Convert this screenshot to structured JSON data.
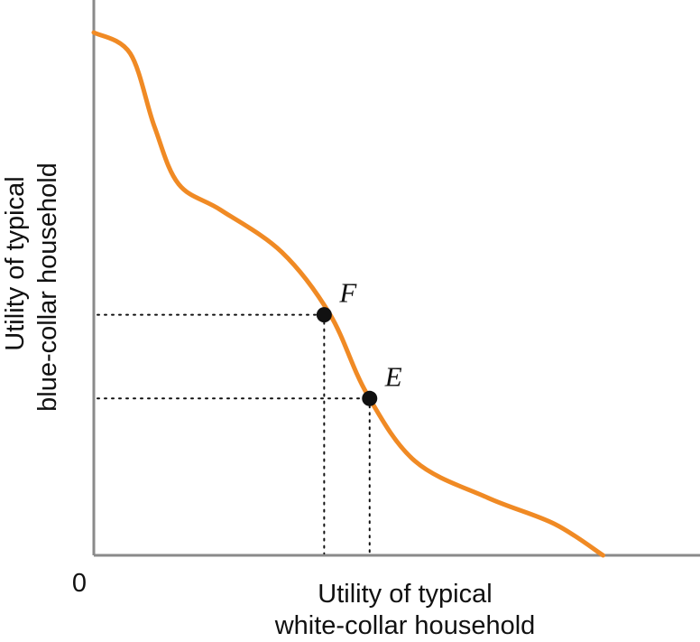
{
  "chart_data": {
    "type": "line",
    "title": "",
    "origin_label": "0",
    "xlabel": [
      "Utility of typical",
      "white-collar household"
    ],
    "ylabel": [
      "Utility of typical",
      "blue-collar household"
    ],
    "grid": false,
    "series": [
      {
        "points": [
          {
            "x": 0,
            "y": 100
          },
          {
            "x": 6,
            "y": 96
          },
          {
            "x": 10,
            "y": 82
          },
          {
            "x": 14,
            "y": 71
          },
          {
            "x": 21,
            "y": 66
          },
          {
            "x": 31,
            "y": 58
          },
          {
            "x": 39,
            "y": 46
          },
          {
            "x": 45,
            "y": 31
          },
          {
            "x": 53,
            "y": 18
          },
          {
            "x": 65,
            "y": 11
          },
          {
            "x": 76,
            "y": 6
          },
          {
            "x": 84,
            "y": 0
          }
        ]
      }
    ],
    "points": [
      {
        "label": "F",
        "x": 38,
        "y": 46
      },
      {
        "label": "E",
        "x": 45.5,
        "y": 30
      }
    ]
  },
  "colors": {
    "curve": "#f08a24",
    "axis": "#8a8a8a",
    "point": "#111111"
  }
}
